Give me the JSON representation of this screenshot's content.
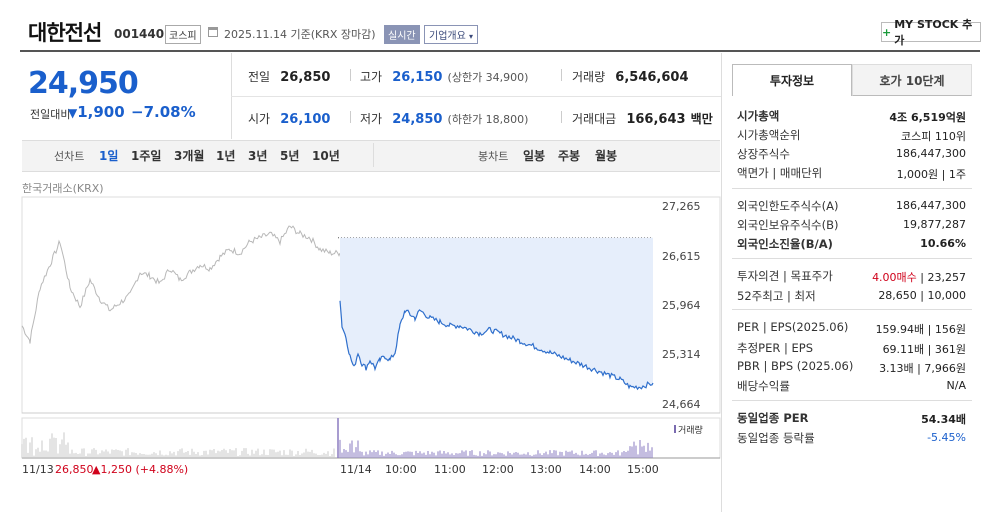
{
  "header": {
    "title": "대한전선",
    "code": "001440",
    "market": "코스피",
    "date": "2025.11.14 기준(KRX 장마감)",
    "live": "실시간",
    "corp": "기업개요",
    "mystock": "MY STOCK 추가"
  },
  "price": {
    "current": "24,950",
    "prev_label": "전일대비",
    "change": "1,900",
    "pct": "−7.08%"
  },
  "stats": {
    "prev_lbl": "전일",
    "prev_val": "26,850",
    "high_lbl": "고가",
    "high_val": "26,150",
    "uplimit": "(상한가 34,900)",
    "vol_lbl": "거래량",
    "vol_val": "6,546,604",
    "open_lbl": "시가",
    "open_val": "26,100",
    "low_lbl": "저가",
    "low_val": "24,850",
    "downlimit": "(하한가 18,800)",
    "amt_lbl": "거래대금",
    "amt_val": "166,643",
    "amt_unit": "백만"
  },
  "periods": {
    "label": "선차트",
    "items": [
      "1일",
      "1주일",
      "3개월",
      "1년",
      "3년",
      "5년",
      "10년"
    ]
  },
  "candle": {
    "label": "봉차트",
    "items": [
      "일봉",
      "주봉",
      "월봉"
    ]
  },
  "chart_source": "한국거래소(KRX)",
  "chart_data": {
    "type": "line",
    "ylabels": [
      "27,265",
      "26,615",
      "25,964",
      "25,314",
      "24,664"
    ],
    "ylim": [
      24664,
      27265
    ],
    "xlabels": [
      "11/14",
      "10:00",
      "11:00",
      "12:00",
      "13:00",
      "14:00",
      "15:00"
    ],
    "prev_day_label": "11/13",
    "prev_close": "26,850",
    "prev_change": "▲1,250 (+4.88%)",
    "volume_label": "거래량",
    "colors": {
      "today": "#2f6fcc",
      "prev": "#b8b8b8",
      "fill": "#e6eefb"
    }
  },
  "panel": {
    "tabs": [
      "투자정보",
      "호가 10단계"
    ],
    "rows": [
      {
        "l": "시가총액",
        "v": "4조 6,519억원",
        "bold": true
      },
      {
        "l": "시가총액순위",
        "v": "코스피 110위"
      },
      {
        "l": "상장주식수",
        "v": "186,447,300"
      },
      {
        "l": "액면가 | 매매단위",
        "v": "1,000원 | 1주"
      },
      {
        "l": "외국인한도주식수(A)",
        "v": "186,447,300"
      },
      {
        "l": "외국인보유주식수(B)",
        "v": "19,877,287"
      },
      {
        "l": "외국인소진율(B/A)",
        "v": "10.66%",
        "bold": true
      },
      {
        "l": "투자의견 | 목표주가",
        "v1": "4.00매수",
        "v2": " | 23,257"
      },
      {
        "l": "52주최고 | 최저",
        "v": "28,650 | 10,000"
      },
      {
        "l": "PER | EPS(2025.06)",
        "v": "159.94배 | 156원"
      },
      {
        "l": "추정PER | EPS",
        "v": "69.11배 | 361원"
      },
      {
        "l": "PBR | BPS (2025.06)",
        "v": "3.13배 | 7,966원"
      },
      {
        "l": "배당수익률",
        "v": "N/A"
      },
      {
        "l": "동일업종 PER",
        "v": "54.34배",
        "bold": true
      },
      {
        "l": "동일업종 등락률",
        "v": "-5.45%",
        "blue": true
      }
    ]
  }
}
